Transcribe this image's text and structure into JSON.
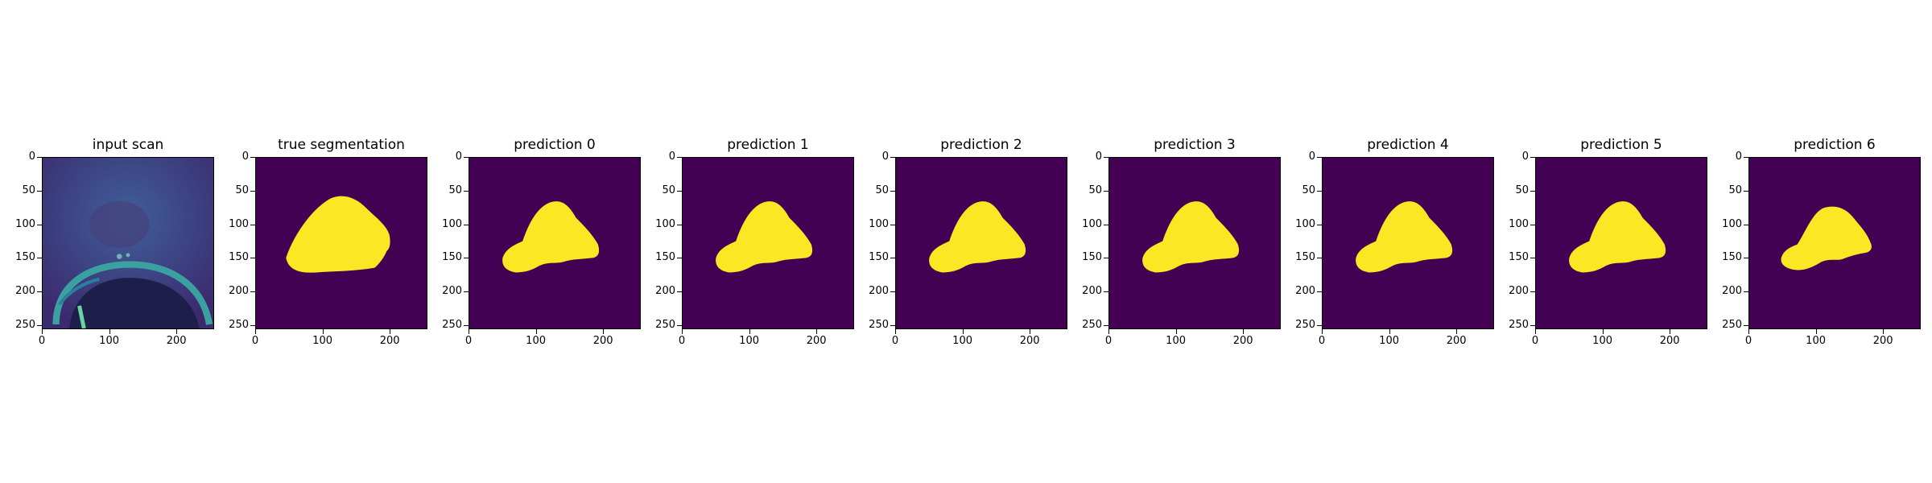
{
  "figure": {
    "panels": [
      {
        "title": "input scan",
        "kind": "scan"
      },
      {
        "title": "true segmentation",
        "kind": "mask",
        "mask": "truth"
      },
      {
        "title": "prediction 0",
        "kind": "mask",
        "mask": "pred"
      },
      {
        "title": "prediction 1",
        "kind": "mask",
        "mask": "pred"
      },
      {
        "title": "prediction 2",
        "kind": "mask",
        "mask": "pred"
      },
      {
        "title": "prediction 3",
        "kind": "mask",
        "mask": "pred"
      },
      {
        "title": "prediction 4",
        "kind": "mask",
        "mask": "pred"
      },
      {
        "title": "prediction 5",
        "kind": "mask",
        "mask": "pred"
      },
      {
        "title": "prediction 6",
        "kind": "mask",
        "mask": "pred_small"
      }
    ],
    "axes": {
      "image_extent": [
        0,
        256
      ],
      "x_ticks": [
        "0",
        "100",
        "200"
      ],
      "y_ticks": [
        "0",
        "50",
        "100",
        "150",
        "200",
        "250"
      ]
    },
    "colors": {
      "background": "#440154",
      "foreground": "#fde725",
      "scan_dark": "#3b2a6e",
      "scan_mid": "#3f5f9a",
      "scan_bright": "#6ad3a0"
    }
  }
}
